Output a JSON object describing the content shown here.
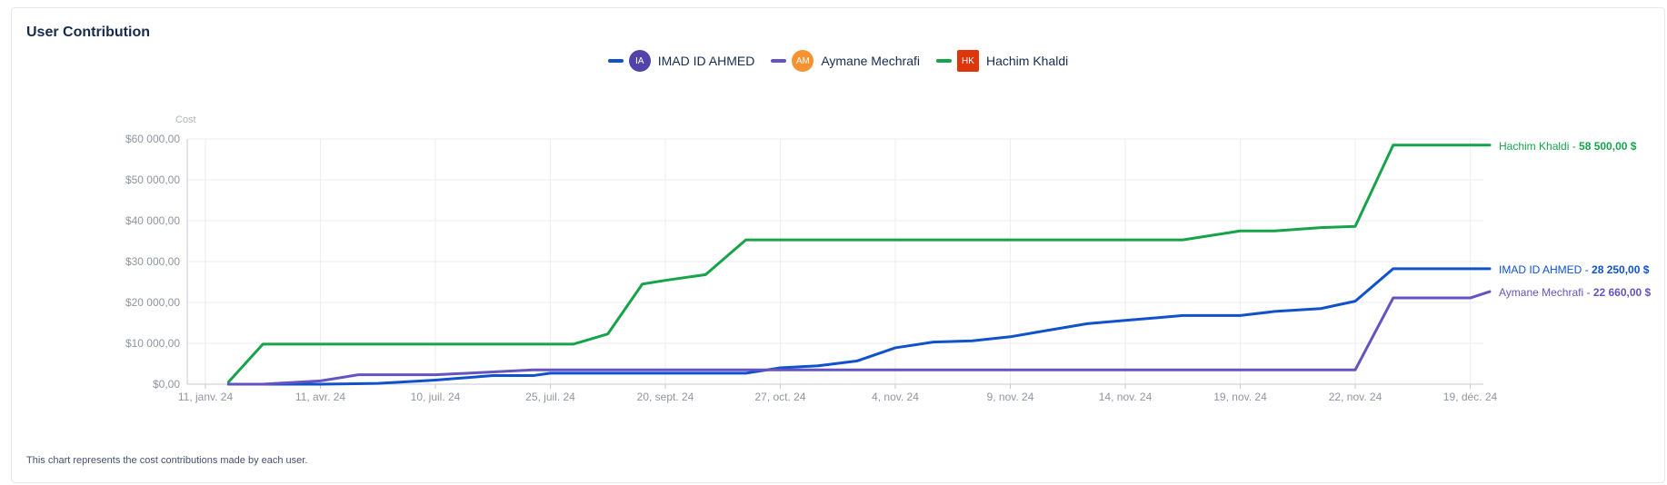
{
  "card": {
    "title": "User Contribution",
    "footnote": "This chart represents the cost contributions made by each user."
  },
  "legend": [
    {
      "name": "IMAD ID AHMED",
      "initials": "IA",
      "avatar_color": "#5243aa",
      "avatar_shape": "circle",
      "line_color": "#0f52cc"
    },
    {
      "name": "Aymane Mechrafi",
      "initials": "AM",
      "avatar_color": "#f79232",
      "avatar_shape": "circle",
      "line_color": "#6554c0"
    },
    {
      "name": "Hachim Khaldi",
      "initials": "HK",
      "avatar_color": "#de350b",
      "avatar_shape": "square",
      "line_color": "#17a34a"
    }
  ],
  "chart_data": {
    "type": "line",
    "ylabel": "Cost",
    "ylim": [
      0,
      60000
    ],
    "yticks": [
      "$0,00",
      "$10 000,00",
      "$20 000,00",
      "$30 000,00",
      "$40 000,00",
      "$50 000,00",
      "$60 000,00"
    ],
    "xticks": [
      "11, janv. 24",
      "11, avr. 24",
      "10, juil. 24",
      "25, juil. 24",
      "20, sept. 24",
      "27, oct. 24",
      "4, nov. 24",
      "9, nov. 24",
      "14, nov. 24",
      "19, nov. 24",
      "22, nov. 24",
      "19, déc. 24"
    ],
    "grid": true,
    "series": [
      {
        "name": "Hachim Khaldi",
        "color": "#17a34a",
        "end_label": "Hachim Khaldi - ",
        "end_value": "58 500,00 $",
        "points": [
          [
            0.2,
            500
          ],
          [
            0.5,
            9800
          ],
          [
            1,
            9800
          ],
          [
            2,
            9800
          ],
          [
            3,
            9800
          ],
          [
            3.2,
            9800
          ],
          [
            3.5,
            12300
          ],
          [
            3.8,
            24500
          ],
          [
            4,
            25400
          ],
          [
            4.35,
            26800
          ],
          [
            4.7,
            35300
          ],
          [
            5,
            35300
          ],
          [
            6,
            35300
          ],
          [
            7,
            35300
          ],
          [
            8,
            35300
          ],
          [
            8.5,
            35300
          ],
          [
            9,
            37500
          ],
          [
            9.3,
            37500
          ],
          [
            9.7,
            38300
          ],
          [
            10,
            38600
          ],
          [
            10.33,
            58500
          ],
          [
            11,
            58500
          ],
          [
            11.17,
            58500
          ]
        ]
      },
      {
        "name": "IMAD ID AHMED",
        "color": "#0f52cc",
        "end_label": "IMAD ID AHMED - ",
        "end_value": "28 250,00 $",
        "points": [
          [
            0.2,
            0
          ],
          [
            1,
            0
          ],
          [
            1.5,
            200
          ],
          [
            2,
            1000
          ],
          [
            2.5,
            2100
          ],
          [
            2.85,
            2100
          ],
          [
            3,
            2700
          ],
          [
            4,
            2700
          ],
          [
            4.7,
            2700
          ],
          [
            5,
            4000
          ],
          [
            5.33,
            4500
          ],
          [
            5.67,
            5700
          ],
          [
            6,
            8900
          ],
          [
            6.33,
            10300
          ],
          [
            6.67,
            10600
          ],
          [
            7,
            11600
          ],
          [
            7.33,
            13200
          ],
          [
            7.67,
            14800
          ],
          [
            8,
            15600
          ],
          [
            8.5,
            16800
          ],
          [
            9,
            16800
          ],
          [
            9.3,
            17800
          ],
          [
            9.7,
            18500
          ],
          [
            10,
            20300
          ],
          [
            10.33,
            28250
          ],
          [
            11,
            28250
          ],
          [
            11.17,
            28250
          ]
        ]
      },
      {
        "name": "Aymane Mechrafi",
        "color": "#6554c0",
        "end_label": "Aymane Mechrafi - ",
        "end_value": "22 660,00 $",
        "points": [
          [
            0.2,
            0
          ],
          [
            0.5,
            0
          ],
          [
            1,
            800
          ],
          [
            1.33,
            2300
          ],
          [
            2,
            2300
          ],
          [
            2.85,
            3500
          ],
          [
            3,
            3500
          ],
          [
            4,
            3500
          ],
          [
            5,
            3500
          ],
          [
            6,
            3500
          ],
          [
            7,
            3500
          ],
          [
            8,
            3500
          ],
          [
            9,
            3500
          ],
          [
            9.7,
            3500
          ],
          [
            10,
            3500
          ],
          [
            10.33,
            21100
          ],
          [
            10.67,
            21100
          ],
          [
            11,
            21100
          ],
          [
            11.17,
            22660
          ]
        ]
      }
    ]
  }
}
